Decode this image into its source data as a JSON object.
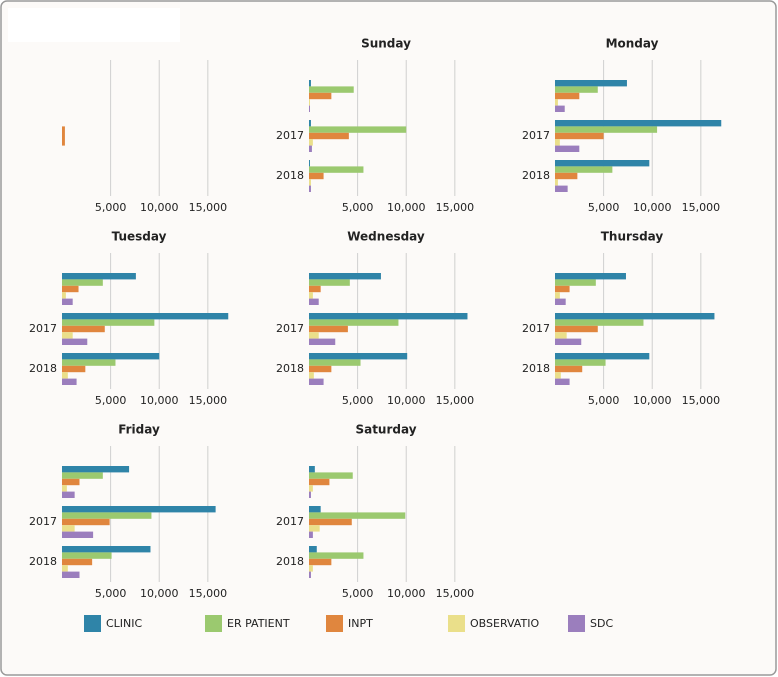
{
  "legend": [
    {
      "name": "CLINIC",
      "color": "#2f84a8"
    },
    {
      "name": "ER PATIENT",
      "color": "#9bc96f"
    },
    {
      "name": "INPT",
      "color": "#e0863e"
    },
    {
      "name": "OBSERVATIO",
      "color": "#eadf8a"
    },
    {
      "name": "SDC",
      "color": "#9b7ebd"
    }
  ],
  "chart_data": [
    {
      "type": "bar",
      "orientation": "horizontal",
      "categories": [
        null
      ],
      "series": [
        {
          "values": [
            null
          ]
        },
        {
          "values": [
            null
          ]
        },
        {
          "values": [
            300
          ]
        },
        {
          "values": [
            null
          ]
        },
        {
          "values": [
            null
          ]
        }
      ],
      "xlim": [
        0,
        18000
      ],
      "xticks": [
        {
          "value": 5000,
          "label": "5,000"
        },
        {
          "value": 10000,
          "label": "10,000"
        },
        {
          "value": 15000,
          "label": "15,000"
        }
      ],
      "grid": true
    },
    {
      "type": "bar",
      "orientation": "horizontal",
      "title": "Sunday",
      "categories": [
        null,
        "2017",
        "2018"
      ],
      "series": [
        {
          "values": [
            200,
            200,
            100
          ]
        },
        {
          "values": [
            4600,
            10000,
            5600
          ]
        },
        {
          "values": [
            2300,
            4100,
            1500
          ]
        },
        {
          "values": [
            100,
            400,
            200
          ]
        },
        {
          "values": [
            100,
            300,
            200
          ]
        }
      ],
      "xlim": [
        0,
        18000
      ],
      "xticks": [
        {
          "value": 5000,
          "label": "5,000"
        },
        {
          "value": 10000,
          "label": "10,000"
        },
        {
          "value": 15000,
          "label": "15,000"
        }
      ],
      "grid": true
    },
    {
      "type": "bar",
      "orientation": "horizontal",
      "title": "Monday",
      "categories": [
        null,
        "2017",
        "2018"
      ],
      "series": [
        {
          "values": [
            7400,
            17100,
            9700
          ]
        },
        {
          "values": [
            4400,
            10500,
            5900
          ]
        },
        {
          "values": [
            2500,
            5000,
            2300
          ]
        },
        {
          "values": [
            300,
            500,
            300
          ]
        },
        {
          "values": [
            1000,
            2500,
            1300
          ]
        }
      ],
      "xlim": [
        0,
        18000
      ],
      "xticks": [
        {
          "value": 5000,
          "label": "5,000"
        },
        {
          "value": 10000,
          "label": "10,000"
        },
        {
          "value": 15000,
          "label": "15,000"
        }
      ],
      "grid": true
    },
    {
      "type": "bar",
      "orientation": "horizontal",
      "title": "Tuesday",
      "categories": [
        null,
        "2017",
        "2018"
      ],
      "series": [
        {
          "values": [
            7600,
            17100,
            10000
          ]
        },
        {
          "values": [
            4200,
            9500,
            5500
          ]
        },
        {
          "values": [
            1700,
            4400,
            2400
          ]
        },
        {
          "values": [
            400,
            1100,
            600
          ]
        },
        {
          "values": [
            1100,
            2600,
            1500
          ]
        }
      ],
      "xlim": [
        0,
        18000
      ],
      "xticks": [
        {
          "value": 5000,
          "label": "5,000"
        },
        {
          "value": 10000,
          "label": "10,000"
        },
        {
          "value": 15000,
          "label": "15,000"
        }
      ],
      "grid": true
    },
    {
      "type": "bar",
      "orientation": "horizontal",
      "title": "Wednesday",
      "categories": [
        null,
        "2017",
        "2018"
      ],
      "series": [
        {
          "values": [
            7400,
            16300,
            10100
          ]
        },
        {
          "values": [
            4200,
            9200,
            5300
          ]
        },
        {
          "values": [
            1200,
            4000,
            2300
          ]
        },
        {
          "values": [
            400,
            1000,
            500
          ]
        },
        {
          "values": [
            1000,
            2700,
            1500
          ]
        }
      ],
      "xlim": [
        0,
        18000
      ],
      "xticks": [
        {
          "value": 5000,
          "label": "5,000"
        },
        {
          "value": 10000,
          "label": "10,000"
        },
        {
          "value": 15000,
          "label": "15,000"
        }
      ],
      "grid": true
    },
    {
      "type": "bar",
      "orientation": "horizontal",
      "title": "Thursday",
      "categories": [
        null,
        "2017",
        "2018"
      ],
      "series": [
        {
          "values": [
            7300,
            16400,
            9700
          ]
        },
        {
          "values": [
            4200,
            9100,
            5200
          ]
        },
        {
          "values": [
            1500,
            4400,
            2800
          ]
        },
        {
          "values": [
            500,
            1200,
            600
          ]
        },
        {
          "values": [
            1100,
            2700,
            1500
          ]
        }
      ],
      "xlim": [
        0,
        18000
      ],
      "xticks": [
        {
          "value": 5000,
          "label": "5,000"
        },
        {
          "value": 10000,
          "label": "10,000"
        },
        {
          "value": 15000,
          "label": "15,000"
        }
      ],
      "grid": true
    },
    {
      "type": "bar",
      "orientation": "horizontal",
      "title": "Friday",
      "categories": [
        null,
        "2017",
        "2018"
      ],
      "series": [
        {
          "values": [
            6900,
            15800,
            9100
          ]
        },
        {
          "values": [
            4200,
            9200,
            5100
          ]
        },
        {
          "values": [
            1800,
            4900,
            3100
          ]
        },
        {
          "values": [
            500,
            1300,
            600
          ]
        },
        {
          "values": [
            1300,
            3200,
            1800
          ]
        }
      ],
      "xlim": [
        0,
        18000
      ],
      "xticks": [
        {
          "value": 5000,
          "label": "5,000"
        },
        {
          "value": 10000,
          "label": "10,000"
        },
        {
          "value": 15000,
          "label": "15,000"
        }
      ],
      "grid": true
    },
    {
      "type": "bar",
      "orientation": "horizontal",
      "title": "Saturday",
      "categories": [
        null,
        "2017",
        "2018"
      ],
      "series": [
        {
          "values": [
            600,
            1200,
            800
          ]
        },
        {
          "values": [
            4500,
            9900,
            5600
          ]
        },
        {
          "values": [
            2100,
            4400,
            2300
          ]
        },
        {
          "values": [
            400,
            1100,
            400
          ]
        },
        {
          "values": [
            200,
            400,
            200
          ]
        }
      ],
      "xlim": [
        0,
        18000
      ],
      "xticks": [
        {
          "value": 5000,
          "label": "5,000"
        },
        {
          "value": 10000,
          "label": "10,000"
        },
        {
          "value": 15000,
          "label": "15,000"
        }
      ],
      "grid": true
    }
  ]
}
